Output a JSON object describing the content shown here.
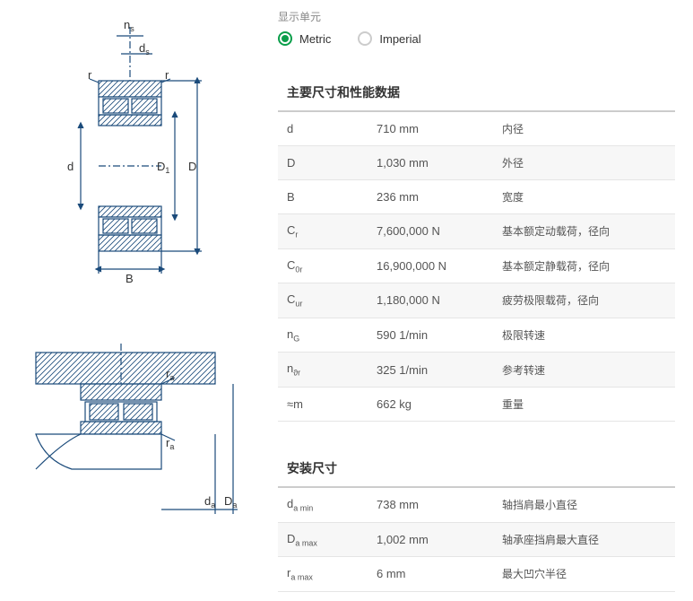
{
  "units": {
    "label": "显示单元",
    "options": {
      "metric": "Metric",
      "imperial": "Imperial"
    },
    "selected": "metric"
  },
  "sections": {
    "main": {
      "title": "主要尺寸和性能数据",
      "rows": [
        {
          "param": "d",
          "sub": "",
          "value": "710 mm",
          "desc": "内径"
        },
        {
          "param": "D",
          "sub": "",
          "value": "1,030 mm",
          "desc": "外径"
        },
        {
          "param": "B",
          "sub": "",
          "value": "236 mm",
          "desc": "宽度"
        },
        {
          "param": "C",
          "sub": "r",
          "value": "7,600,000 N",
          "desc": "基本额定动载荷，径向"
        },
        {
          "param": "C",
          "sub": "0r",
          "value": "16,900,000 N",
          "desc": "基本额定静载荷，径向"
        },
        {
          "param": "C",
          "sub": "ur",
          "value": "1,180,000 N",
          "desc": "疲劳极限载荷，径向"
        },
        {
          "param": "n",
          "sub": "G",
          "value": "590 1/min",
          "desc": "极限转速"
        },
        {
          "param": "n",
          "sub": "ϑr",
          "value": "325 1/min",
          "desc": "参考转速"
        },
        {
          "param": "≈m",
          "sub": "",
          "value": "662 kg",
          "desc": "重量"
        }
      ]
    },
    "mounting": {
      "title": "安装尺寸",
      "rows": [
        {
          "param": "d",
          "sub": "a min",
          "value": "738 mm",
          "desc": "轴挡肩最小直径"
        },
        {
          "param": "D",
          "sub": "a max",
          "value": "1,002 mm",
          "desc": "轴承座挡肩最大直径"
        },
        {
          "param": "r",
          "sub": "a max",
          "value": "6 mm",
          "desc": "最大凹穴半径"
        }
      ]
    }
  },
  "diagram_colors": {
    "stroke": "#1a4a7a",
    "hatch": "#1a4a7a",
    "bg": "#ffffff"
  }
}
